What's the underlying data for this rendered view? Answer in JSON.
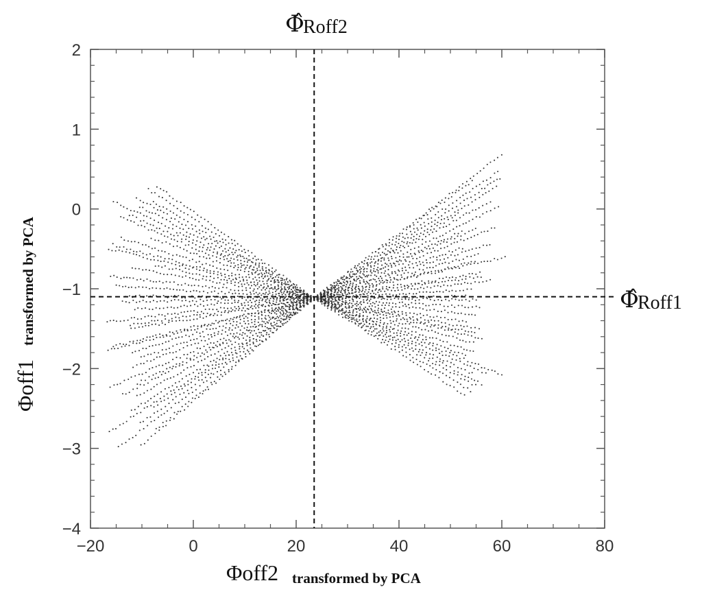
{
  "chart_data": {
    "type": "scatter",
    "title": "",
    "xlabel": {
      "main": "Φoff2",
      "sub": "transformed by PCA"
    },
    "ylabel": {
      "main": "Φoff1",
      "sub": "transformed by PCA"
    },
    "xlim": [
      -20,
      80
    ],
    "ylim": [
      -4,
      2
    ],
    "xticks": [
      "−20",
      "0",
      "20",
      "40",
      "60",
      "80"
    ],
    "yticks": [
      "2",
      "1",
      "0",
      "−1",
      "−2",
      "−3",
      "−4"
    ],
    "grid": false,
    "legend": "none",
    "point_color": "#3a3a3a",
    "reference_lines": [
      {
        "orientation": "vertical",
        "x": 23.5,
        "label_symbol": "Φ̂",
        "label_sub": "Roff2"
      },
      {
        "orientation": "horizontal",
        "y": -1.1,
        "label_symbol": "Φ̂",
        "label_sub": "Roff1"
      }
    ],
    "point_pattern": {
      "center": [
        23.5,
        -1.12
      ],
      "left_x_range": [
        -17,
        23.5
      ],
      "right_x_range": [
        23.5,
        61
      ],
      "slope_range": [
        -0.045,
        0.055
      ],
      "left_y_span": [
        -3.0,
        0.7
      ],
      "right_y_span": [
        -3.1,
        1.25
      ]
    }
  }
}
